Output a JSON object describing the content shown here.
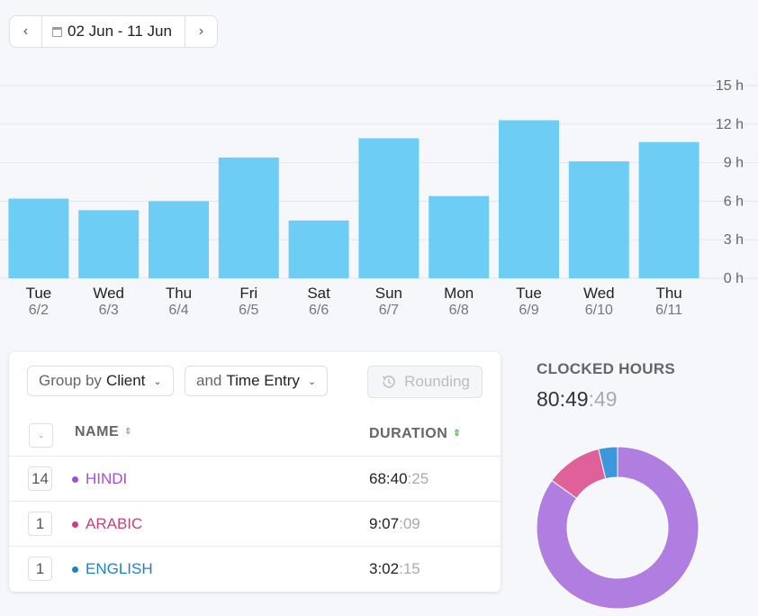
{
  "date_range": {
    "prev_icon": "chevron-left-icon",
    "next_icon": "chevron-right-icon",
    "calendar_icon": "calendar-icon",
    "label": "02 Jun - 11 Jun"
  },
  "chart_data": {
    "type": "bar",
    "categories": [
      "Tue",
      "Wed",
      "Thu",
      "Fri",
      "Sat",
      "Sun",
      "Mon",
      "Tue",
      "Wed",
      "Thu"
    ],
    "dates": [
      "6/2",
      "6/3",
      "6/4",
      "6/5",
      "6/6",
      "6/7",
      "6/8",
      "6/9",
      "6/10",
      "6/11"
    ],
    "values": [
      6.2,
      5.3,
      6.0,
      9.4,
      4.5,
      10.9,
      6.4,
      12.3,
      9.1,
      10.6
    ],
    "y_ticks": [
      "0 h",
      "3 h",
      "6 h",
      "9 h",
      "12 h",
      "15 h"
    ],
    "ylim": [
      0,
      15
    ],
    "bar_color": "#6dcdf4",
    "grid": true
  },
  "table": {
    "group_by_prefix": "Group by",
    "group_by_value": "Client",
    "then_prefix": "and",
    "then_value": "Time Entry",
    "rounding_label": "Rounding",
    "rounding_icon": "history-icon",
    "col_name": "NAME",
    "col_duration": "DURATION",
    "rows": [
      {
        "count": "14",
        "name": "HINDI",
        "color": "#a24fd6",
        "hm": "68:40",
        "sec": ":25"
      },
      {
        "count": "1",
        "name": "ARABIC",
        "color": "#cc3f7a",
        "hm": "9:07",
        "sec": ":09"
      },
      {
        "count": "1",
        "name": "ENGLISH",
        "color": "#1f80c6",
        "hm": "3:02",
        "sec": ":15"
      }
    ]
  },
  "clocked": {
    "title": "CLOCKED HOURS",
    "hm": "80:49",
    "sec": ":49"
  },
  "donut": {
    "segments": [
      {
        "label": "HINDI",
        "fraction": 0.849,
        "color": "#b07ee0"
      },
      {
        "label": "ARABIC",
        "fraction": 0.113,
        "color": "#e0609a"
      },
      {
        "label": "ENGLISH",
        "fraction": 0.038,
        "color": "#3d97dc"
      }
    ]
  }
}
